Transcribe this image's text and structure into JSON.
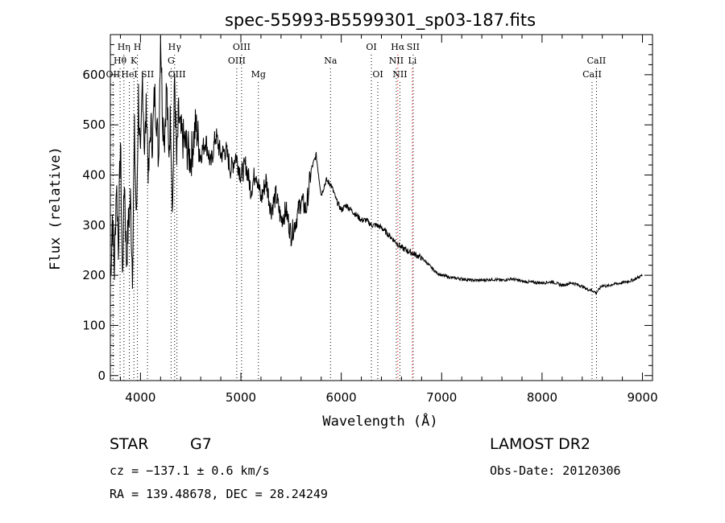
{
  "chart_data": {
    "type": "line",
    "title": "spec-55993-B5599301_sp03-187.fits",
    "xlabel": "Wavelength (Å)",
    "ylabel": "Flux (relative)",
    "xlim": [
      3700,
      9100
    ],
    "ylim": [
      -10,
      680
    ],
    "xticks": [
      4000,
      5000,
      6000,
      7000,
      8000,
      9000
    ],
    "yticks": [
      0,
      100,
      200,
      300,
      400,
      500,
      600
    ],
    "series": [
      {
        "name": "flux",
        "x": [
          3700,
          3720,
          3740,
          3760,
          3780,
          3800,
          3820,
          3840,
          3860,
          3880,
          3900,
          3920,
          3940,
          3960,
          3980,
          4000,
          4020,
          4040,
          4060,
          4080,
          4100,
          4120,
          4140,
          4160,
          4180,
          4200,
          4220,
          4240,
          4260,
          4280,
          4300,
          4320,
          4340,
          4360,
          4380,
          4400,
          4450,
          4500,
          4550,
          4600,
          4650,
          4700,
          4750,
          4800,
          4850,
          4900,
          4950,
          5000,
          5050,
          5100,
          5150,
          5200,
          5250,
          5300,
          5350,
          5400,
          5450,
          5500,
          5550,
          5600,
          5650,
          5700,
          5750,
          5800,
          5850,
          5900,
          5950,
          6000,
          6050,
          6100,
          6150,
          6200,
          6250,
          6300,
          6350,
          6400,
          6450,
          6500,
          6550,
          6600,
          6650,
          6700,
          6750,
          6800,
          6850,
          6900,
          6950,
          7000,
          7100,
          7200,
          7300,
          7400,
          7500,
          7600,
          7700,
          7800,
          7900,
          8000,
          8100,
          8200,
          8300,
          8400,
          8450,
          8500,
          8540,
          8560,
          8600,
          8650,
          8700,
          8800,
          8900,
          9000
        ],
        "values": [
          180,
          320,
          210,
          390,
          260,
          470,
          190,
          400,
          230,
          300,
          350,
          210,
          480,
          300,
          560,
          410,
          600,
          450,
          540,
          390,
          500,
          470,
          560,
          520,
          430,
          690,
          520,
          480,
          580,
          440,
          520,
          330,
          600,
          420,
          520,
          480,
          460,
          430,
          500,
          440,
          470,
          420,
          480,
          440,
          450,
          410,
          440,
          400,
          420,
          370,
          410,
          350,
          390,
          330,
          360,
          310,
          330,
          280,
          310,
          350,
          330,
          410,
          440,
          360,
          390,
          380,
          350,
          330,
          340,
          330,
          320,
          310,
          310,
          300,
          300,
          295,
          285,
          275,
          265,
          255,
          250,
          245,
          240,
          235,
          225,
          215,
          205,
          200,
          195,
          193,
          190,
          190,
          192,
          190,
          193,
          188,
          186,
          185,
          187,
          180,
          185,
          178,
          172,
          170,
          165,
          170,
          180,
          178,
          182,
          185,
          190,
          200
        ]
      }
    ],
    "emission_lines": [
      {
        "label": "Hη",
        "x": 3835,
        "row": 1,
        "color": "#000000"
      },
      {
        "label": "H",
        "x": 3970,
        "row": 1,
        "color": "#000000"
      },
      {
        "label": "Hθ",
        "x": 3797,
        "row": 2,
        "color": "#000000"
      },
      {
        "label": "K",
        "x": 3934,
        "row": 2,
        "color": "#000000"
      },
      {
        "label": "OII",
        "x": 3727,
        "row": 3,
        "color": "#000000"
      },
      {
        "label": "HeI",
        "x": 3889,
        "row": 3,
        "color": "#000000"
      },
      {
        "label": "SII",
        "x": 4070,
        "row": 3,
        "color": "#000000"
      },
      {
        "label": "Hγ",
        "x": 4340,
        "row": 1,
        "color": "#000000"
      },
      {
        "label": "G",
        "x": 4305,
        "row": 2,
        "color": "#000000"
      },
      {
        "label": "OIII",
        "x": 4363,
        "row": 3,
        "color": "#000000"
      },
      {
        "label": "OIII",
        "x": 5007,
        "row": 1,
        "color": "#000000"
      },
      {
        "label": "OIII",
        "x": 4959,
        "row": 2,
        "color": "#000000"
      },
      {
        "label": "Mg",
        "x": 5175,
        "row": 3,
        "color": "#000000"
      },
      {
        "label": "Na",
        "x": 5893,
        "row": 2,
        "color": "#000000"
      },
      {
        "label": "OI",
        "x": 6300,
        "row": 1,
        "color": "#000000"
      },
      {
        "label": "OI",
        "x": 6364,
        "row": 3,
        "color": "#000000"
      },
      {
        "label": "Hα",
        "x": 6563,
        "row": 1,
        "color": "#ff0000"
      },
      {
        "label": "SII",
        "x": 6716,
        "row": 1,
        "color": "#000000"
      },
      {
        "label": "NII",
        "x": 6548,
        "row": 2,
        "color": "#000000"
      },
      {
        "label": "Li",
        "x": 6708,
        "row": 2,
        "color": "#ff0000"
      },
      {
        "label": "NII",
        "x": 6584,
        "row": 3,
        "color": "#000000"
      },
      {
        "label": "CaII",
        "x": 8542,
        "row": 2,
        "color": "#000000"
      },
      {
        "label": "CaII",
        "x": 8498,
        "row": 3,
        "color": "#000000"
      }
    ]
  },
  "info": {
    "class": "STAR",
    "subclass": "G7",
    "survey": "LAMOST DR2",
    "redshift": "cz = −137.1 ± 0.6 km/s",
    "obs_date": "Obs-Date: 20120306",
    "coords": "RA = 139.48678, DEC =  28.24249"
  }
}
